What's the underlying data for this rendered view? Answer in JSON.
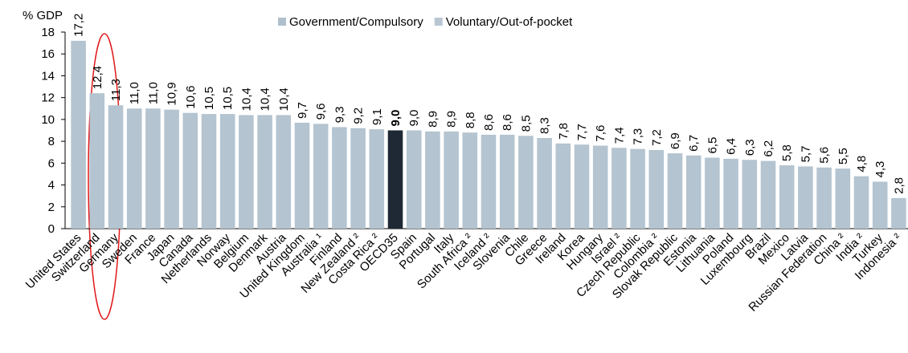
{
  "chart_data": {
    "type": "bar",
    "y_axis_label": "% GDP",
    "legend": [
      {
        "name": "Government/Compulsory",
        "color": "#aebfcd"
      },
      {
        "name": "Voluntary/Out-of-pocket",
        "color": "#b8c6d2"
      }
    ],
    "categories": [
      "United States",
      "Switzerland",
      "Germany",
      "Sweden",
      "France",
      "Japan",
      "Canada",
      "Netherlands",
      "Norway",
      "Belgium",
      "Denmark",
      "Austria",
      "United Kingdom",
      "Australia ¹",
      "Finland",
      "New Zealand ²",
      "Costa Rica ²",
      "OECD35",
      "Spain",
      "Portugal",
      "Italy",
      "South Africa ²",
      "Iceland ²",
      "Slovenia",
      "Chile",
      "Greece",
      "Ireland",
      "Korea",
      "Hungary",
      "Israel ²",
      "Czech Republic",
      "Colombia ²",
      "Slovak Republic",
      "Estonia",
      "Lithuania",
      "Poland",
      "Luxembourg",
      "Brazil",
      "Mexico",
      "Latvia",
      "Russian Federation",
      "China ²",
      "India ²",
      "Turkey",
      "Indonesia ²"
    ],
    "values": [
      17.2,
      12.4,
      11.3,
      11.0,
      11.0,
      10.9,
      10.6,
      10.5,
      10.5,
      10.4,
      10.4,
      10.4,
      9.7,
      9.6,
      9.3,
      9.2,
      9.1,
      9.0,
      9.0,
      8.9,
      8.9,
      8.8,
      8.6,
      8.6,
      8.5,
      8.3,
      7.8,
      7.7,
      7.6,
      7.4,
      7.3,
      7.2,
      6.9,
      6.7,
      6.5,
      6.4,
      6.3,
      6.2,
      5.8,
      5.7,
      5.6,
      5.5,
      4.8,
      4.3,
      2.8
    ],
    "value_labels": [
      "17,2",
      "12,4",
      "11,3",
      "11,0",
      "11,0",
      "10,9",
      "10,6",
      "10,5",
      "10,5",
      "10,4",
      "10,4",
      "10,4",
      "9,7",
      "9,6",
      "9,3",
      "9,2",
      "9,1",
      "9,0",
      "9,0",
      "8,9",
      "8,9",
      "8,8",
      "8,6",
      "8,6",
      "8,5",
      "8,3",
      "7,8",
      "7,7",
      "7,6",
      "7,4",
      "7,3",
      "7,2",
      "6,9",
      "6,7",
      "6,5",
      "6,4",
      "6,3",
      "6,2",
      "5,8",
      "5,7",
      "5,6",
      "5,5",
      "4,8",
      "4,3",
      "2,8"
    ],
    "color": "#b4c4d0",
    "highlight": {
      "category": 17,
      "color": "#1e2935"
    },
    "ylim": [
      0,
      18
    ],
    "yticks": [
      0,
      2,
      4,
      6,
      8,
      10,
      12,
      14,
      16,
      18
    ]
  }
}
